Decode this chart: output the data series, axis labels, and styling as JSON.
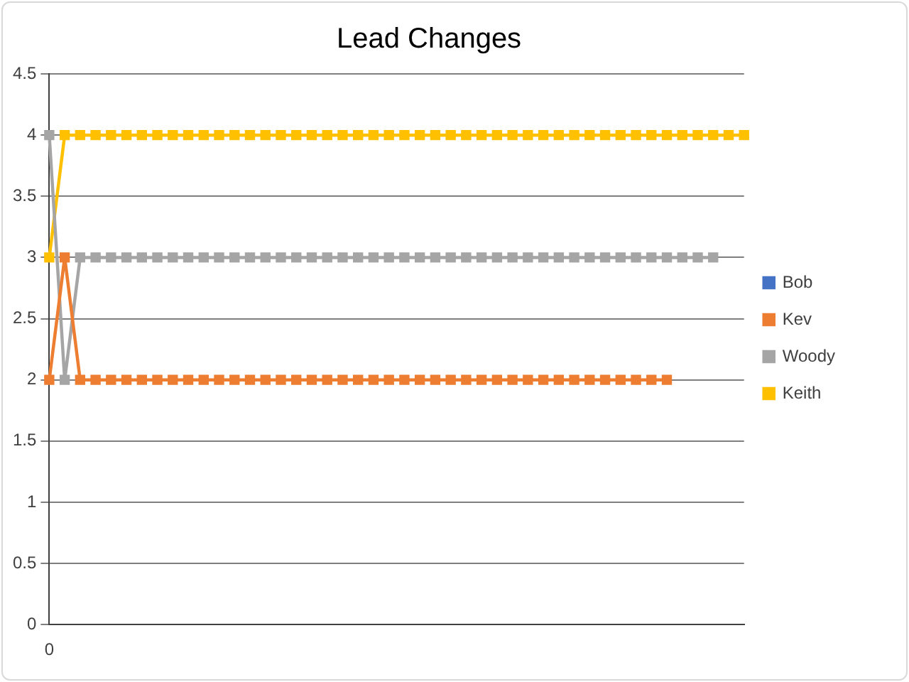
{
  "chart_data": {
    "type": "line",
    "title": "Lead Changes",
    "categories": [
      "0",
      null,
      null,
      null,
      null,
      null,
      null,
      null,
      null,
      null,
      null,
      null,
      null,
      null,
      null,
      null,
      null,
      null,
      null,
      null,
      null,
      null,
      null,
      null,
      null,
      null,
      null,
      null,
      null,
      null,
      null,
      null,
      null,
      null,
      null,
      null,
      null,
      null,
      null,
      null,
      null,
      null,
      null,
      null,
      null,
      null
    ],
    "series": [
      {
        "name": "Bob",
        "color": "#4472c4",
        "values": [
          null,
          null,
          null,
          null,
          null,
          null,
          null,
          null,
          null,
          null,
          null,
          null,
          null,
          null,
          null,
          null,
          null,
          null,
          null,
          null,
          null,
          null,
          null,
          null,
          null,
          null,
          null,
          null,
          null,
          null,
          null,
          null,
          null,
          null,
          null,
          null,
          null,
          null,
          null,
          null,
          null,
          null,
          null,
          null,
          null,
          null
        ]
      },
      {
        "name": "Kev",
        "color": "#ed7d31",
        "values": [
          2,
          3,
          2,
          2,
          2,
          2,
          2,
          2,
          2,
          2,
          2,
          2,
          2,
          2,
          2,
          2,
          2,
          2,
          2,
          2,
          2,
          2,
          2,
          2,
          2,
          2,
          2,
          2,
          2,
          2,
          2,
          2,
          2,
          2,
          2,
          2,
          2,
          2,
          2,
          2,
          2,
          null,
          null,
          null,
          null,
          null
        ]
      },
      {
        "name": "Woody",
        "color": "#a5a5a5",
        "values": [
          4,
          2,
          3,
          3,
          3,
          3,
          3,
          3,
          3,
          3,
          3,
          3,
          3,
          3,
          3,
          3,
          3,
          3,
          3,
          3,
          3,
          3,
          3,
          3,
          3,
          3,
          3,
          3,
          3,
          3,
          3,
          3,
          3,
          3,
          3,
          3,
          3,
          3,
          3,
          3,
          3,
          3,
          3,
          3,
          null,
          null
        ]
      },
      {
        "name": "Keith",
        "color": "#ffc000",
        "values": [
          3,
          4,
          4,
          4,
          4,
          4,
          4,
          4,
          4,
          4,
          4,
          4,
          4,
          4,
          4,
          4,
          4,
          4,
          4,
          4,
          4,
          4,
          4,
          4,
          4,
          4,
          4,
          4,
          4,
          4,
          4,
          4,
          4,
          4,
          4,
          4,
          4,
          4,
          4,
          4,
          4,
          4,
          4,
          4,
          4,
          4
        ]
      }
    ],
    "ylim": [
      0,
      4.5
    ],
    "yticks": [
      0,
      0.5,
      1,
      1.5,
      2,
      2.5,
      3,
      3.5,
      4,
      4.5
    ],
    "grid": "y",
    "legend": "right",
    "marker": "square",
    "line_style": "solid"
  }
}
